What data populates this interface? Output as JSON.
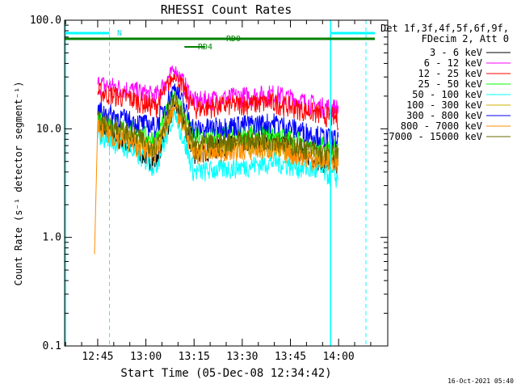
{
  "chart_data": {
    "type": "line",
    "title": "RHESSI Count Rates",
    "xlabel": "Start Time (05-Dec-08 12:34:42)",
    "ylabel": "Count Rate (s⁻¹ detector segment⁻¹)",
    "y_scale": "log",
    "ylim": [
      0.1,
      100.0
    ],
    "y_ticks": [
      "0.1",
      "1.0",
      "10.0",
      "100.0"
    ],
    "x_ticks": [
      "12:45",
      "13:00",
      "13:15",
      "13:30",
      "13:45",
      "14:00"
    ],
    "xlim": [
      "12:34:42",
      "14:15:18"
    ],
    "legend_header": [
      "Det 1f,3f,4f,5f,6f,9f,",
      "FDecim 2, Att 0"
    ],
    "legend_position": "right",
    "grid": false,
    "series": [
      {
        "name": "3 - 6 keV",
        "color": "#000000",
        "values_at_times": {
          "12:45": 11.0,
          "12:55": 7.0,
          "13:03": 5.0,
          "13:09": 17.0,
          "13:15": 6.0,
          "13:30": 7.5,
          "13:40": 8.0,
          "13:55": 5.0,
          "14:00": 4.5
        }
      },
      {
        "name": "6 - 12 keV",
        "color": "#ff00ff",
        "values_at_times": {
          "12:45": 26.0,
          "12:55": 23.0,
          "13:03": 20.0,
          "13:09": 36.0,
          "13:15": 18.0,
          "13:30": 20.0,
          "13:40": 21.0,
          "13:55": 16.0,
          "14:00": 15.5
        }
      },
      {
        "name": "12 - 25 keV",
        "color": "#ff0000",
        "values_at_times": {
          "12:45": 22.0,
          "12:55": 19.0,
          "13:03": 16.0,
          "13:09": 32.0,
          "13:15": 15.5,
          "13:30": 17.0,
          "13:40": 17.5,
          "13:55": 13.5,
          "14:00": 12.5
        }
      },
      {
        "name": "25 - 50 keV",
        "color": "#00ff00",
        "values_at_times": {
          "12:45": 13.0,
          "12:55": 10.0,
          "13:03": 8.0,
          "13:09": 22.0,
          "13:15": 8.5,
          "13:30": 9.0,
          "13:40": 9.0,
          "13:55": 7.0,
          "14:00": 6.5
        }
      },
      {
        "name": "50 - 100 keV",
        "color": "#00ffff",
        "values_at_times": {
          "12:45": 9.0,
          "12:55": 6.5,
          "13:03": 4.5,
          "13:09": 14.0,
          "13:15": 4.0,
          "13:30": 4.5,
          "13:40": 5.0,
          "13:55": 4.0,
          "14:00": 3.5
        }
      },
      {
        "name": "100 - 300 keV",
        "color": "#d2b000",
        "values_at_times": {
          "12:45": 11.0,
          "12:55": 8.0,
          "13:03": 6.5,
          "13:09": 18.0,
          "13:15": 6.5,
          "13:30": 7.0,
          "13:40": 7.0,
          "13:55": 5.5,
          "14:00": 5.5
        }
      },
      {
        "name": "300 - 800 keV",
        "color": "#0000ff",
        "values_at_times": {
          "12:45": 15.0,
          "12:55": 12.0,
          "13:03": 10.5,
          "13:09": 25.0,
          "13:15": 10.0,
          "13:30": 11.0,
          "13:40": 11.5,
          "13:55": 8.5,
          "14:00": 8.0
        }
      },
      {
        "name": "800 - 7000 keV",
        "color": "#ff8c00",
        "values_at_times": {
          "12:44": 0.7,
          "12:45": 10.0,
          "12:55": 7.5,
          "13:03": 6.0,
          "13:09": 16.0,
          "13:15": 6.0,
          "13:30": 6.5,
          "13:40": 6.5,
          "13:55": 5.0,
          "14:00": 5.0
        }
      },
      {
        "name": "7000 - 15000 keV",
        "color": "#6b6b00",
        "values_at_times": {
          "12:45": 12.0,
          "12:55": 9.0,
          "13:03": 7.0,
          "13:09": 20.0,
          "13:15": 7.0,
          "13:30": 8.0,
          "13:40": 8.0,
          "13:55": 6.0,
          "14:00": 6.0
        }
      }
    ],
    "annotations": {
      "n_label": "N",
      "rd0_label": "RD0",
      "rd4_label": "RD4",
      "timestamp": "16-Oct-2021 05:40"
    },
    "colors": {
      "cyan": "#00ffff",
      "green": "#008000",
      "axis": "#000000"
    }
  }
}
